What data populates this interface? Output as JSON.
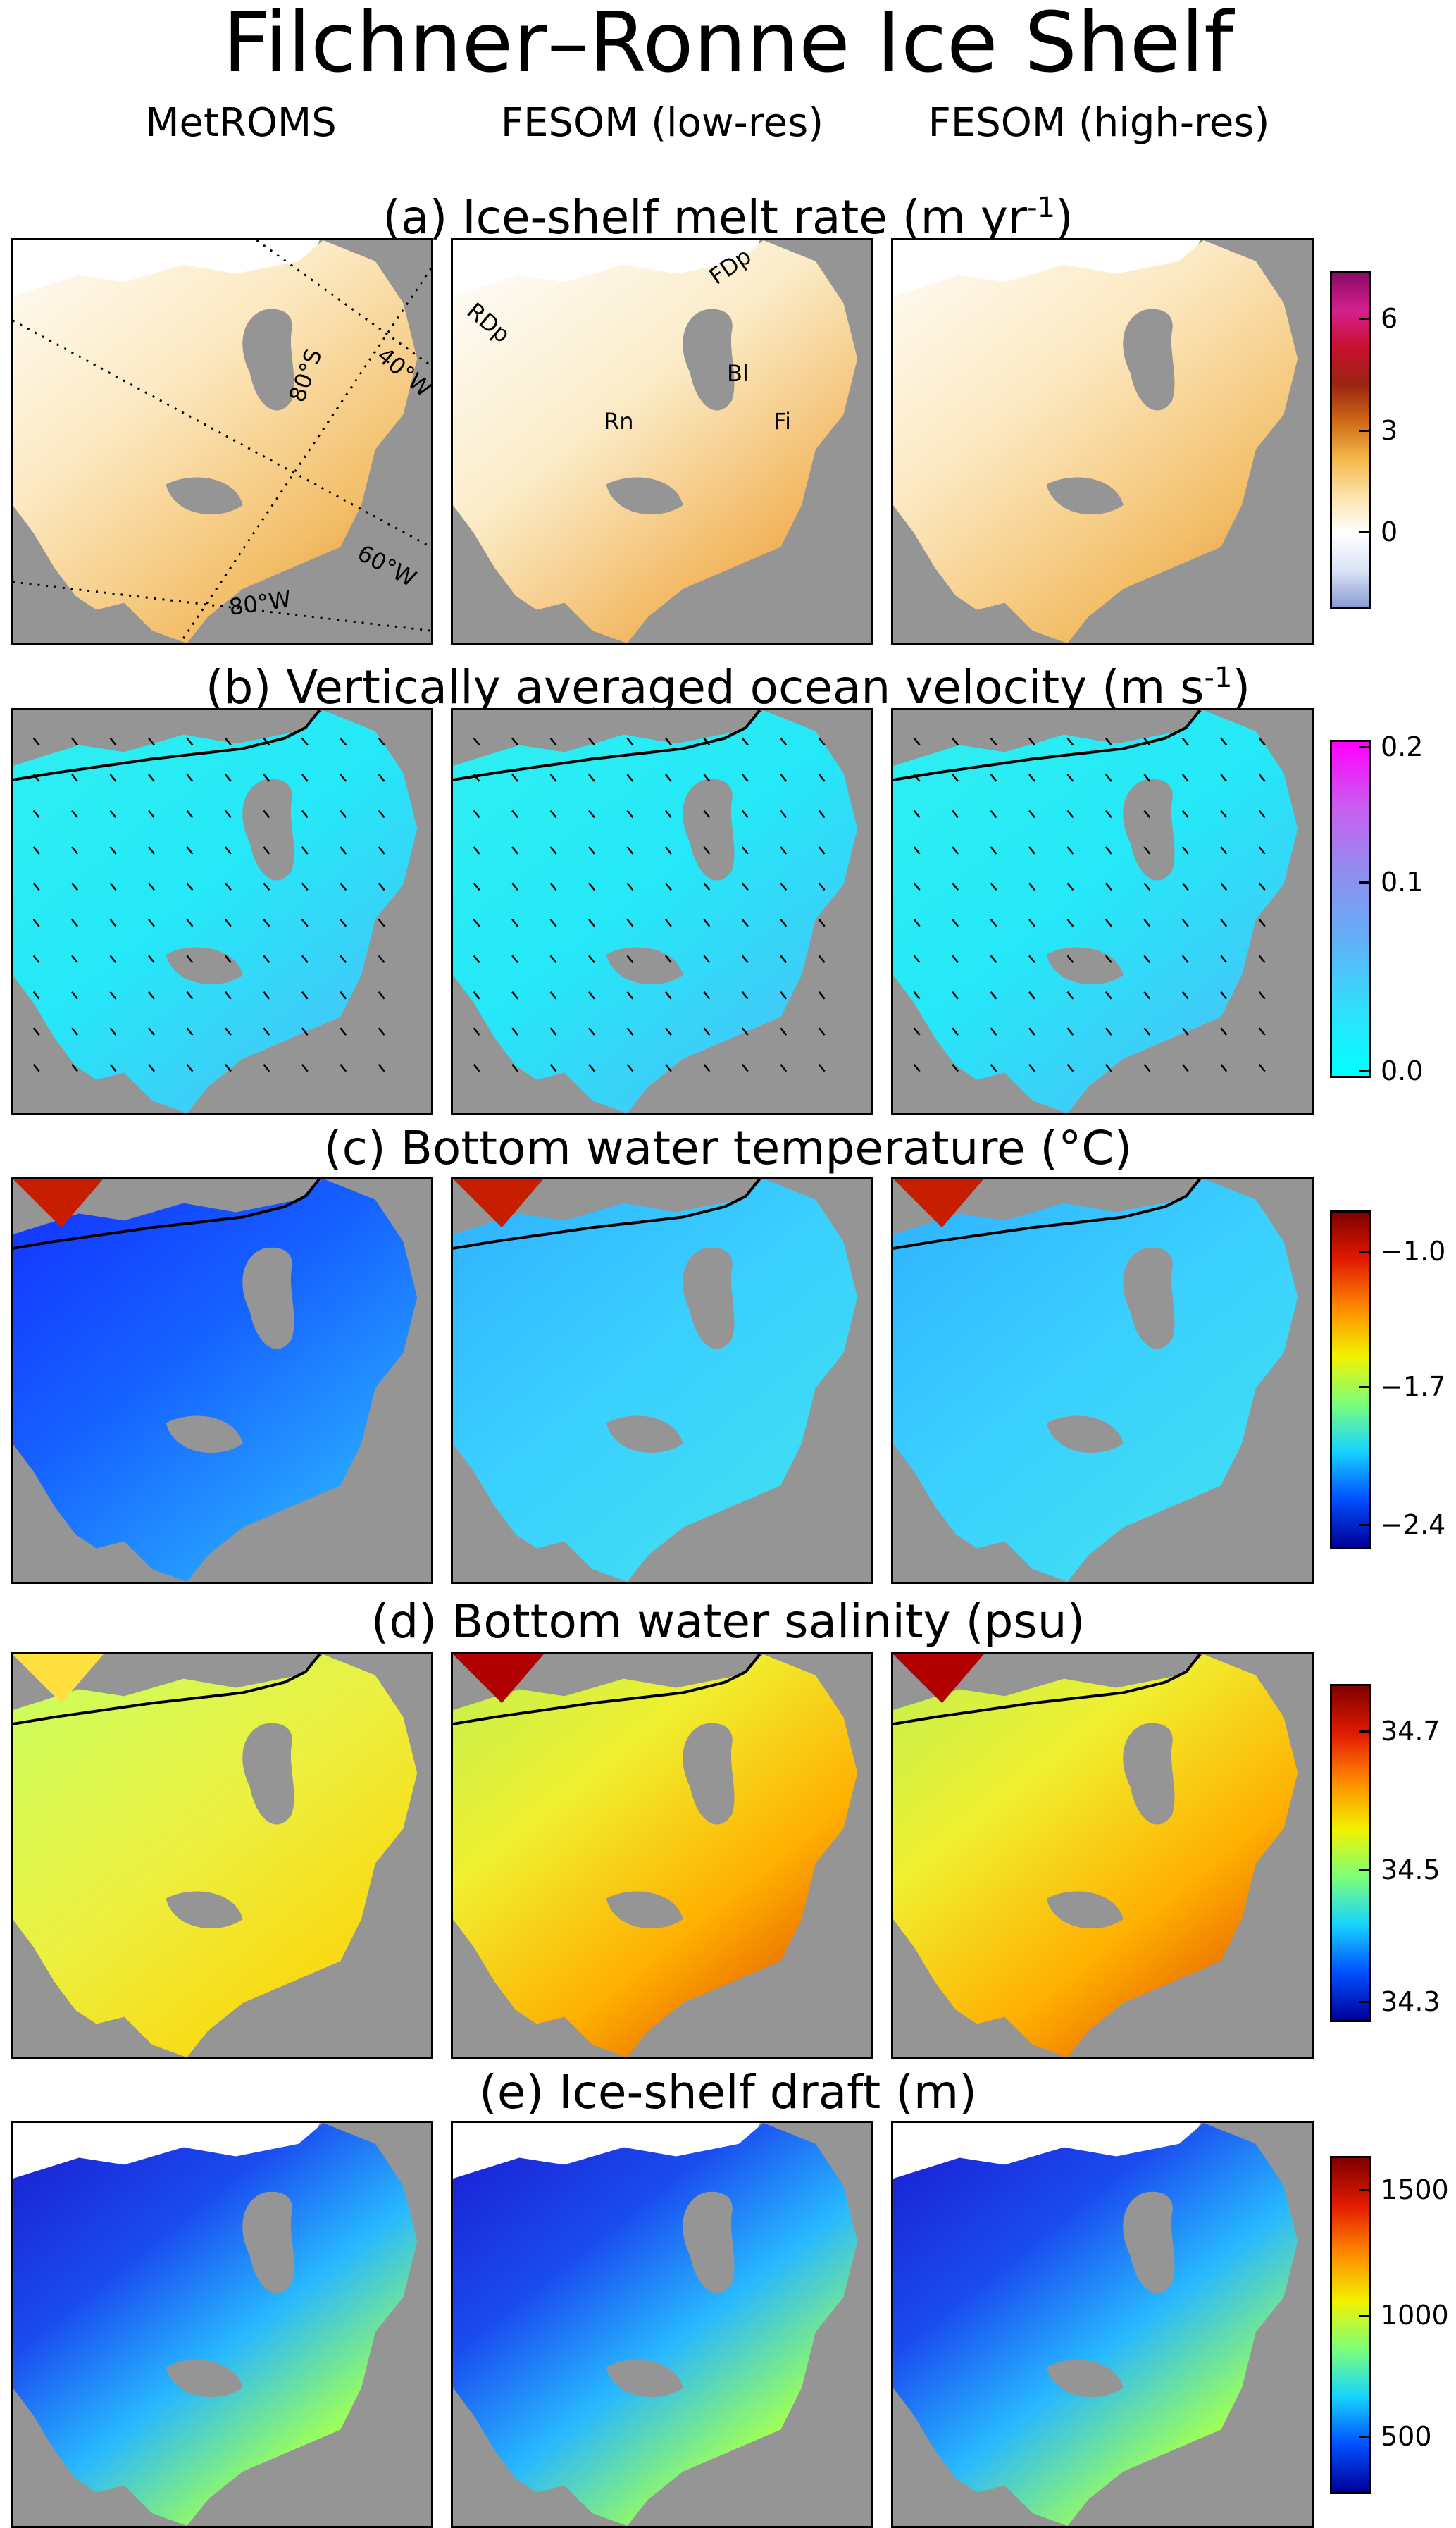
{
  "figure": {
    "title": "Filchner–Ronne Ice Shelf",
    "columns": [
      "MetROMS",
      "FESOM (low-res)",
      "FESOM (high-res)"
    ]
  },
  "rows": [
    {
      "title": "(a) Ice-shelf melt rate (m yr",
      "title_sup": "-1",
      "title_end": ")",
      "colorbar": {
        "ticks": [
          "6",
          "3",
          "0"
        ],
        "colors": [
          "#8a0a6a",
          "#d4208c",
          "#c8102e",
          "#9a2410",
          "#d06a18",
          "#f3b84a",
          "#fbe3a8",
          "#ffffff",
          "#dbe3f6",
          "#8a9bd2"
        ]
      },
      "annotations": {
        "latlon": [
          "80°S",
          "40°W",
          "60°W",
          "80°W"
        ],
        "regions": [
          "FDp",
          "RDp",
          "Bl",
          "Rn",
          "Fi"
        ]
      }
    },
    {
      "title": "(b) Vertically averaged ocean velocity (m s",
      "title_sup": "-1",
      "title_end": ")",
      "colorbar": {
        "ticks": [
          "0.2",
          "0.1",
          "0.0"
        ],
        "colors": [
          "#ff00ff",
          "#c760f0",
          "#8f8ff0",
          "#60b0f8",
          "#30e0fc",
          "#00ffff"
        ]
      }
    },
    {
      "title": "(c) Bottom water temperature (°C)",
      "title_sup": "",
      "title_end": "",
      "colorbar": {
        "ticks": [
          "−1.0",
          "−1.7",
          "−2.4"
        ],
        "colors": [
          "#800000",
          "#e21b00",
          "#ff8a00",
          "#f2f200",
          "#7cff79",
          "#16d4ff",
          "#0050ff",
          "#00009a"
        ]
      }
    },
    {
      "title": "(d) Bottom water salinity (psu)",
      "title_sup": "",
      "title_end": "",
      "colorbar": {
        "ticks": [
          "34.7",
          "34.5",
          "34.3"
        ],
        "colors": [
          "#800000",
          "#e21b00",
          "#ff8a00",
          "#f2f200",
          "#7cff79",
          "#16d4ff",
          "#0050ff",
          "#00009a"
        ]
      }
    },
    {
      "title": "(e) Ice-shelf draft (m)",
      "title_sup": "",
      "title_end": "",
      "colorbar": {
        "ticks": [
          "1500",
          "1000",
          "500"
        ],
        "colors": [
          "#800000",
          "#e21b00",
          "#ff8a00",
          "#f2f200",
          "#7cff79",
          "#16d4ff",
          "#0050ff",
          "#00009a"
        ]
      }
    }
  ],
  "colors": {
    "land": "#959595",
    "frame": "#000000"
  }
}
